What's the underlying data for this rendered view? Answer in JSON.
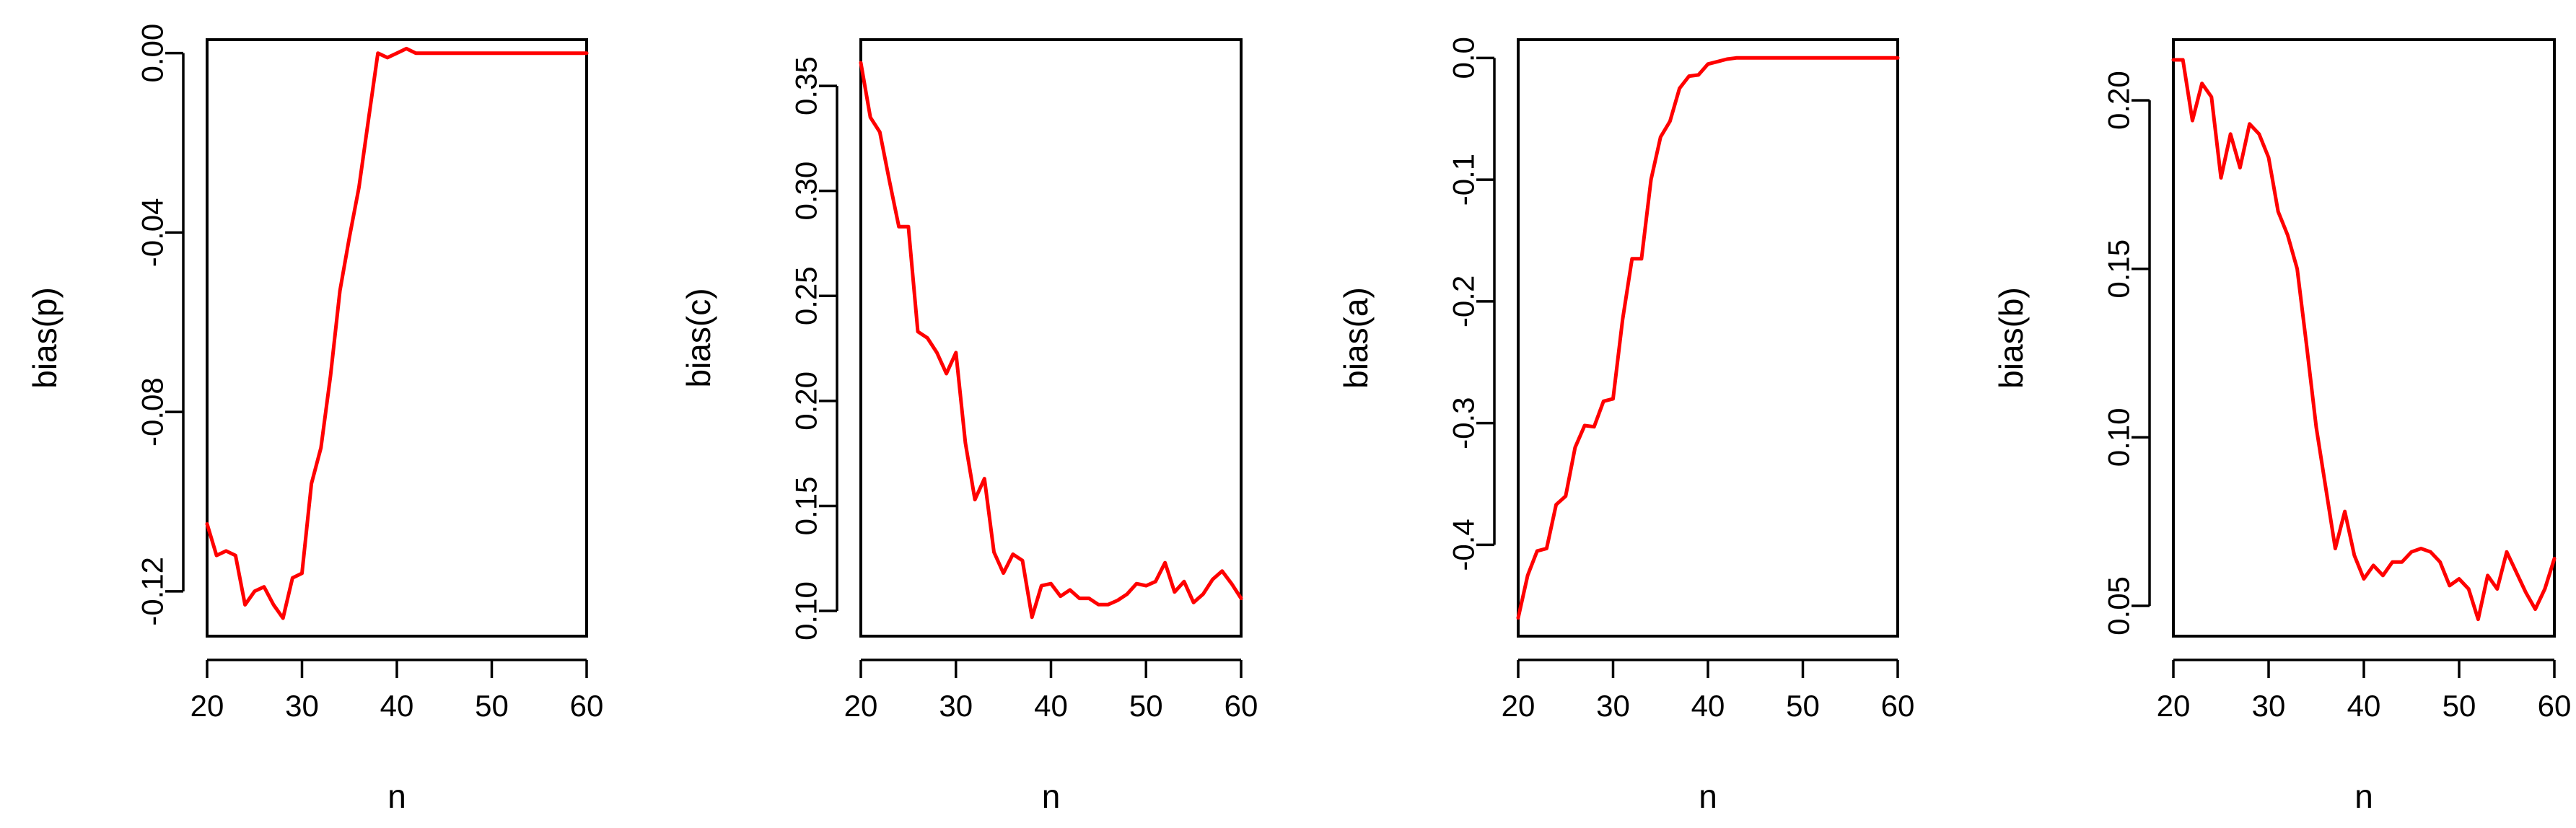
{
  "chart_data": [
    {
      "type": "line",
      "xlabel": "n",
      "ylabel": "bias(p)",
      "color": "#ff0000",
      "xlim": [
        20,
        60
      ],
      "ylim": [
        -0.13,
        0.003
      ],
      "xticks": [
        20,
        30,
        40,
        50,
        60
      ],
      "yticks": [
        -0.12,
        -0.08,
        -0.04,
        0.0
      ],
      "ytick_labels": [
        "-0.12",
        "-0.08",
        "-0.04",
        "0.00"
      ],
      "x": [
        20,
        21,
        22,
        23,
        24,
        25,
        26,
        27,
        28,
        29,
        30,
        31,
        32,
        33,
        34,
        35,
        36,
        37,
        38,
        39,
        40,
        41,
        42,
        43,
        44,
        45,
        46,
        47,
        48,
        49,
        50,
        51,
        52,
        53,
        54,
        55,
        56,
        57,
        58,
        59,
        60
      ],
      "y": [
        -0.105,
        -0.112,
        -0.111,
        -0.112,
        -0.123,
        -0.12,
        -0.119,
        -0.123,
        -0.126,
        -0.117,
        -0.116,
        -0.096,
        -0.088,
        -0.072,
        -0.053,
        -0.041,
        -0.03,
        -0.015,
        0.0,
        -0.001,
        0.0,
        0.001,
        0.0,
        0.0,
        0.0,
        0.0,
        0.0,
        0.0,
        0.0,
        0.0,
        0.0,
        0.0,
        0.0,
        0.0,
        0.0,
        0.0,
        0.0,
        0.0,
        0.0,
        0.0,
        0.0
      ]
    },
    {
      "type": "line",
      "xlabel": "n",
      "ylabel": "bias(c)",
      "color": "#ff0000",
      "xlim": [
        20,
        60
      ],
      "ylim": [
        0.088,
        0.372
      ],
      "xticks": [
        20,
        30,
        40,
        50,
        60
      ],
      "yticks": [
        0.1,
        0.15,
        0.2,
        0.25,
        0.3,
        0.35
      ],
      "ytick_labels": [
        "0.10",
        "0.15",
        "0.20",
        "0.25",
        "0.30",
        "0.35"
      ],
      "x": [
        20,
        21,
        22,
        23,
        24,
        25,
        26,
        27,
        28,
        29,
        30,
        31,
        32,
        33,
        34,
        35,
        36,
        37,
        38,
        39,
        40,
        41,
        42,
        43,
        44,
        45,
        46,
        47,
        48,
        49,
        50,
        51,
        52,
        53,
        54,
        55,
        56,
        57,
        58,
        59,
        60
      ],
      "y": [
        0.361,
        0.335,
        0.328,
        0.305,
        0.283,
        0.283,
        0.233,
        0.23,
        0.223,
        0.213,
        0.223,
        0.18,
        0.153,
        0.163,
        0.128,
        0.118,
        0.127,
        0.124,
        0.097,
        0.112,
        0.113,
        0.107,
        0.11,
        0.106,
        0.106,
        0.103,
        0.103,
        0.105,
        0.108,
        0.113,
        0.112,
        0.114,
        0.123,
        0.109,
        0.114,
        0.104,
        0.108,
        0.115,
        0.119,
        0.113,
        0.106
      ]
    },
    {
      "type": "line",
      "xlabel": "n",
      "ylabel": "bias(a)",
      "color": "#ff0000",
      "xlim": [
        20,
        60
      ],
      "ylim": [
        -0.475,
        0.015
      ],
      "xticks": [
        20,
        30,
        40,
        50,
        60
      ],
      "yticks": [
        -0.4,
        -0.3,
        -0.2,
        -0.1,
        0.0
      ],
      "ytick_labels": [
        "-0.4",
        "-0.3",
        "-0.2",
        "-0.1",
        "0.0"
      ],
      "x": [
        20,
        21,
        22,
        23,
        24,
        25,
        26,
        27,
        28,
        29,
        30,
        31,
        32,
        33,
        34,
        35,
        36,
        37,
        38,
        39,
        40,
        41,
        42,
        43,
        44,
        45,
        46,
        47,
        48,
        49,
        50,
        51,
        52,
        53,
        54,
        55,
        56,
        57,
        58,
        59,
        60
      ],
      "y": [
        -0.46,
        -0.425,
        -0.405,
        -0.403,
        -0.367,
        -0.36,
        -0.32,
        -0.302,
        -0.303,
        -0.282,
        -0.28,
        -0.215,
        -0.165,
        -0.165,
        -0.1,
        -0.065,
        -0.052,
        -0.025,
        -0.015,
        -0.014,
        -0.005,
        -0.003,
        -0.001,
        0.0,
        0.0,
        0.0,
        0.0,
        0.0,
        0.0,
        0.0,
        0.0,
        0.0,
        0.0,
        0.0,
        0.0,
        0.0,
        0.0,
        0.0,
        0.0,
        0.0,
        0.0
      ]
    },
    {
      "type": "line",
      "xlabel": "n",
      "ylabel": "bias(b)",
      "color": "#ff0000",
      "xlim": [
        20,
        60
      ],
      "ylim": [
        0.041,
        0.218
      ],
      "xticks": [
        20,
        30,
        40,
        50,
        60
      ],
      "yticks": [
        0.05,
        0.1,
        0.15,
        0.2
      ],
      "ytick_labels": [
        "0.05",
        "0.10",
        "0.15",
        "0.20"
      ],
      "x": [
        20,
        21,
        22,
        23,
        24,
        25,
        26,
        27,
        28,
        29,
        30,
        31,
        32,
        33,
        34,
        35,
        36,
        37,
        38,
        39,
        40,
        41,
        42,
        43,
        44,
        45,
        46,
        47,
        48,
        49,
        50,
        51,
        52,
        53,
        54,
        55,
        56,
        57,
        58,
        59,
        60
      ],
      "y": [
        0.212,
        0.212,
        0.194,
        0.205,
        0.201,
        0.177,
        0.19,
        0.18,
        0.193,
        0.19,
        0.183,
        0.167,
        0.16,
        0.15,
        0.127,
        0.103,
        0.085,
        0.067,
        0.078,
        0.065,
        0.058,
        0.062,
        0.059,
        0.063,
        0.063,
        0.066,
        0.067,
        0.066,
        0.063,
        0.056,
        0.058,
        0.055,
        0.046,
        0.059,
        0.055,
        0.066,
        0.06,
        0.054,
        0.049,
        0.055,
        0.064
      ]
    }
  ]
}
